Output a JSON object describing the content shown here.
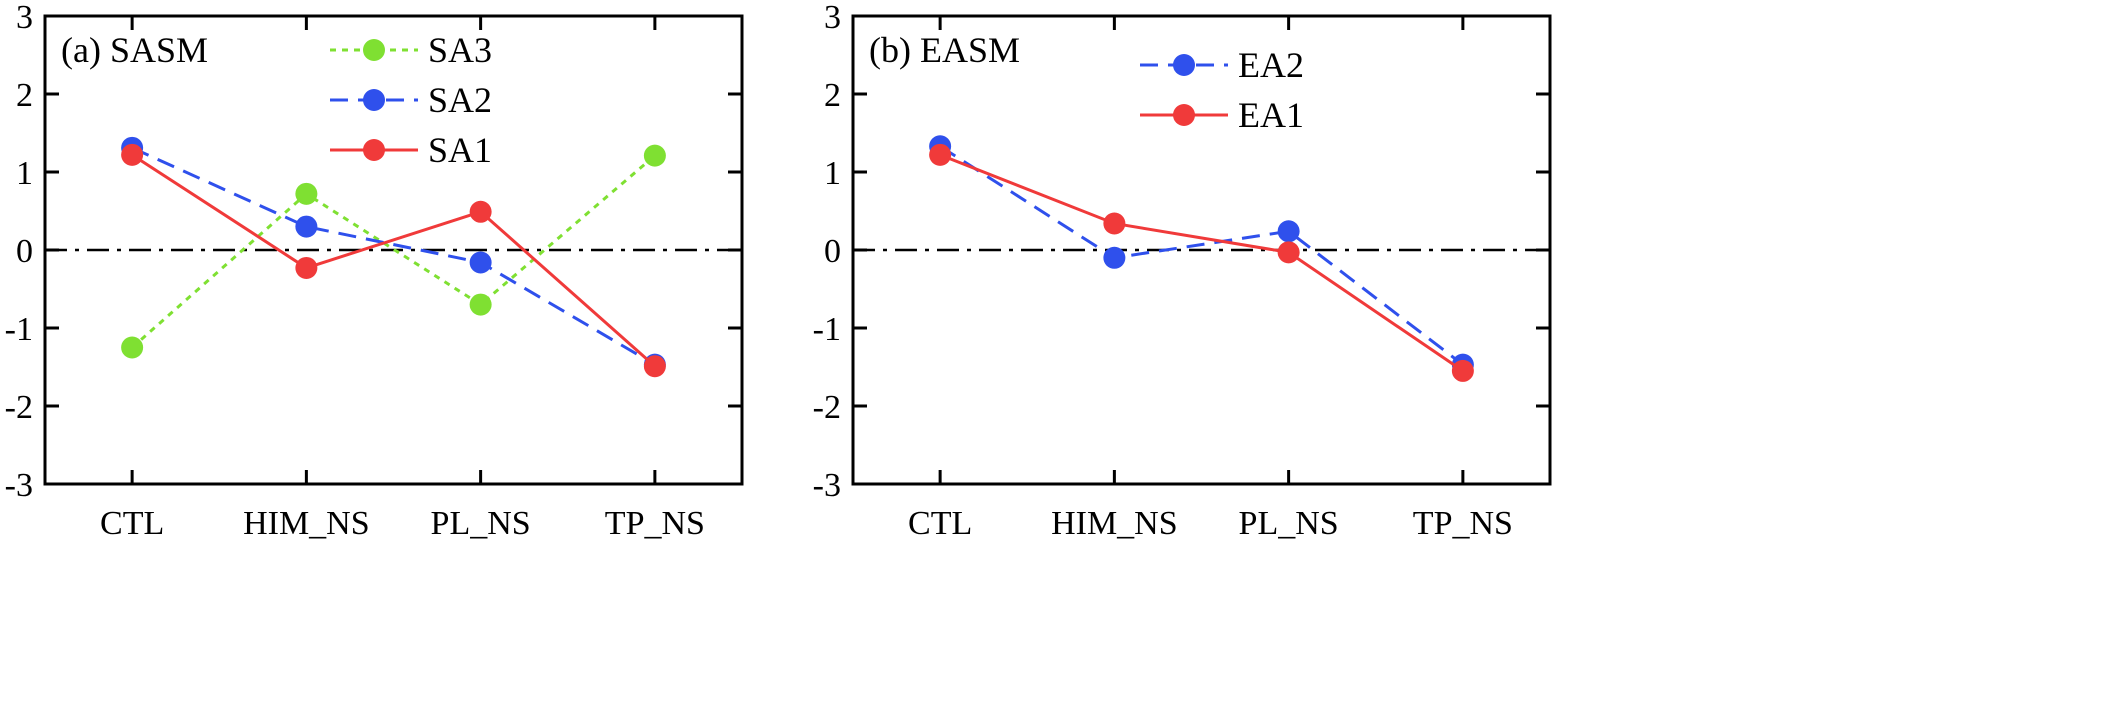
{
  "chart_data": [
    {
      "type": "line",
      "title": "(a) SASM",
      "categories": [
        "CTL",
        "HIM_NS",
        "PL_NS",
        "TP_NS"
      ],
      "ylim": [
        -3,
        3
      ],
      "yticks": [
        3,
        2,
        1,
        0,
        -1,
        -2,
        -3
      ],
      "ytick_labels": [
        "3",
        "2",
        "1",
        "0",
        "-1",
        "-2",
        "-3"
      ],
      "zero_line": "dash-dot",
      "legend_position": "top-center",
      "series": [
        {
          "name": "SA3",
          "color": "#7fe032",
          "style": "dotted",
          "values": [
            -1.25,
            0.72,
            -0.7,
            1.21
          ]
        },
        {
          "name": "SA2",
          "color": "#2f50ec",
          "style": "dashed",
          "values": [
            1.31,
            0.3,
            -0.16,
            -1.47
          ]
        },
        {
          "name": "SA1",
          "color": "#f03a3a",
          "style": "solid",
          "values": [
            1.22,
            -0.23,
            0.49,
            -1.49
          ]
        }
      ]
    },
    {
      "type": "line",
      "title": "(b) EASM",
      "categories": [
        "CTL",
        "HIM_NS",
        "PL_NS",
        "TP_NS"
      ],
      "ylim": [
        -3,
        3
      ],
      "yticks": [
        3,
        2,
        1,
        0,
        -1,
        -2,
        -3
      ],
      "ytick_labels": [
        "3",
        "2",
        "1",
        "0",
        "-1",
        "-2",
        "-3"
      ],
      "zero_line": "dash-dot",
      "legend_position": "top-center",
      "series": [
        {
          "name": "EA2",
          "color": "#2f50ec",
          "style": "dashed",
          "values": [
            1.33,
            -0.1,
            0.24,
            -1.47
          ]
        },
        {
          "name": "EA1",
          "color": "#f03a3a",
          "style": "solid",
          "values": [
            1.22,
            0.34,
            -0.03,
            -1.55
          ]
        }
      ]
    }
  ]
}
